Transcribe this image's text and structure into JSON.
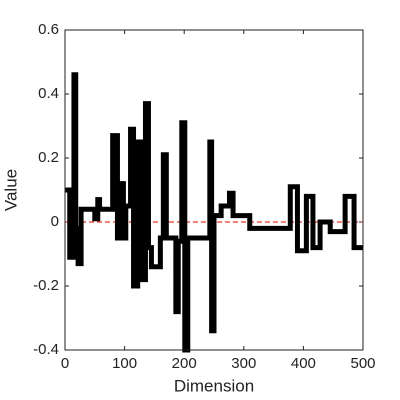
{
  "chart_data": {
    "type": "step",
    "xlabel": "Dimension",
    "ylabel": "Value",
    "xlim": [
      0,
      500
    ],
    "ylim": [
      -0.4,
      0.6
    ],
    "xticks": [
      0,
      100,
      200,
      300,
      400,
      500
    ],
    "yticks": [
      -0.4,
      -0.2,
      0,
      0.2,
      0.4,
      0.6
    ],
    "color": "#000000",
    "reference_line": {
      "value": 0,
      "color": "#e00000"
    },
    "x": [
      0,
      8,
      15,
      18,
      22,
      27,
      50,
      55,
      58,
      80,
      88,
      92,
      98,
      102,
      110,
      115,
      122,
      128,
      135,
      140,
      145,
      160,
      165,
      170,
      186,
      190,
      196,
      201,
      206,
      243,
      246,
      250,
      262,
      276,
      282,
      310,
      378,
      390,
      405,
      416,
      428,
      445,
      470,
      485,
      500
    ],
    "values": [
      0.1,
      -0.11,
      0.46,
      -0.02,
      -0.13,
      0.04,
      0.01,
      0.07,
      0.04,
      0.27,
      -0.05,
      0.12,
      -0.05,
      0.05,
      0.29,
      -0.2,
      0.25,
      -0.18,
      0.37,
      -0.08,
      -0.14,
      -0.05,
      0.21,
      -0.05,
      -0.28,
      -0.06,
      0.31,
      -0.4,
      -0.05,
      0.25,
      -0.34,
      0.02,
      0.05,
      0.09,
      0.02,
      -0.02,
      0.11,
      -0.09,
      0.08,
      -0.08,
      0.0,
      -0.03,
      0.08,
      -0.08,
      -0.08
    ]
  }
}
